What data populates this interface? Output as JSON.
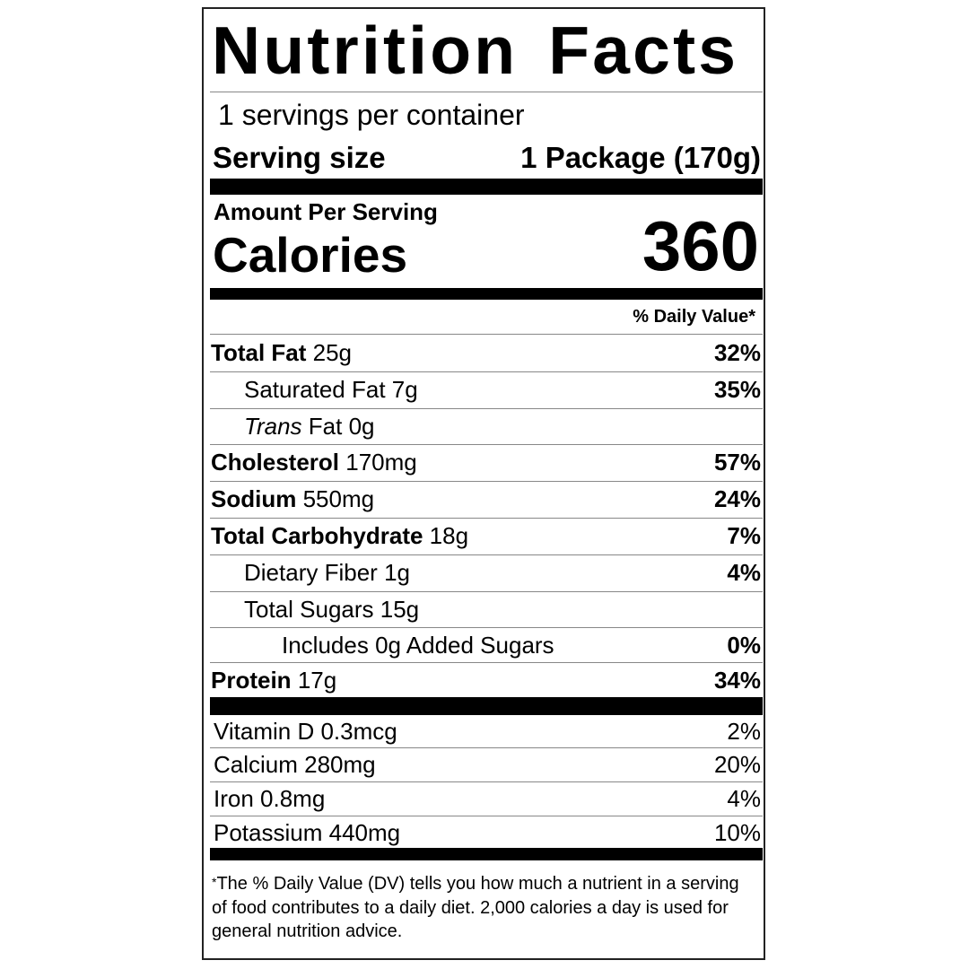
{
  "title": "Nutrition Facts",
  "servings_per_container": "1 servings per container",
  "serving_size_label": "Serving size",
  "serving_size_value": "1 Package (170g)",
  "amount_per_serving": "Amount Per Serving",
  "calories_label": "Calories",
  "calories_value": "360",
  "daily_value_header": "% Daily Value*",
  "nutrients": [
    {
      "name": "Total Fat",
      "amount": "25g",
      "dv": "32%",
      "bold": true,
      "indent": 0
    },
    {
      "name": "Saturated Fat",
      "amount": "7g",
      "dv": "35%",
      "bold": false,
      "indent": 1
    },
    {
      "name_italic": "Trans",
      "name": "Fat",
      "amount": "0g",
      "dv": "",
      "bold": false,
      "indent": 1
    },
    {
      "name": "Cholesterol",
      "amount": "170mg",
      "dv": "57%",
      "bold": true,
      "indent": 0
    },
    {
      "name": "Sodium",
      "amount": "550mg",
      "dv": "24%",
      "bold": true,
      "indent": 0
    },
    {
      "name": "Total Carbohydrate",
      "amount": "18g",
      "dv": "7%",
      "bold": true,
      "indent": 0
    },
    {
      "name": "Dietary Fiber",
      "amount": "1g",
      "dv": "4%",
      "bold": false,
      "indent": 1
    },
    {
      "name": "Total Sugars",
      "amount": "15g",
      "dv": "",
      "bold": false,
      "indent": 1
    },
    {
      "name": "Includes 0g Added Sugars",
      "amount": "",
      "dv": "0%",
      "bold": false,
      "indent": 2
    },
    {
      "name": "Protein",
      "amount": "17g",
      "dv": "34%",
      "bold": true,
      "indent": 0
    }
  ],
  "vitamins": [
    {
      "text": "Vitamin D 0.3mcg",
      "dv": "2%"
    },
    {
      "text": "Calcium 280mg",
      "dv": "20%"
    },
    {
      "text": "Iron 0.8mg",
      "dv": "4%"
    },
    {
      "text": "Potassium 440mg",
      "dv": "10%"
    }
  ],
  "footnote_asterisk": "*",
  "footnote": "The % Daily Value (DV) tells you how much a nutrient in a serving of food contributes to a daily diet. 2,000 calories a day is used for general nutrition advice."
}
